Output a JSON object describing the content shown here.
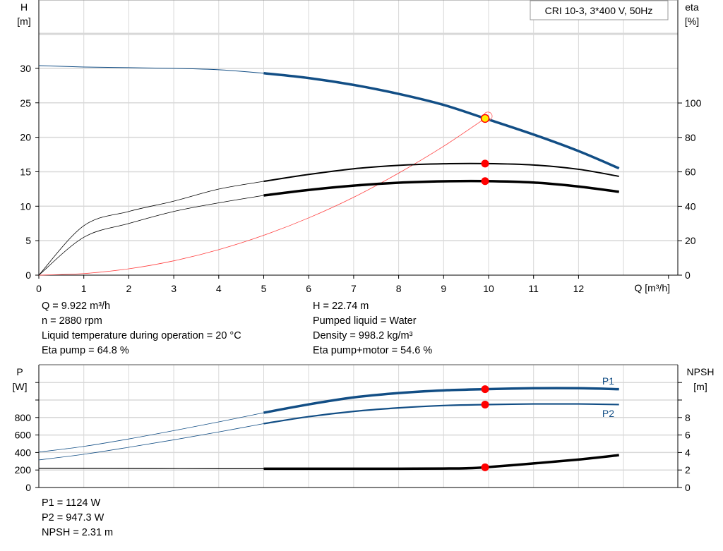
{
  "chart_data": [
    {
      "type": "line",
      "title": "CRI 10-3, 3*400 V, 50Hz",
      "xlabel": "Q [m³/h]",
      "ylabel_left": [
        "H",
        "[m]"
      ],
      "ylabel_right": [
        "eta",
        "[%]"
      ],
      "xlim": [
        0,
        14
      ],
      "xticks": [
        "0",
        "1",
        "2",
        "3",
        "4",
        "5",
        "6",
        "7",
        "8",
        "9",
        "10",
        "11",
        "12"
      ],
      "ylim_left": [
        0,
        35
      ],
      "yticks_left": [
        "0",
        "5",
        "10",
        "15",
        "20",
        "25",
        "30"
      ],
      "ylim_right": [
        0,
        143
      ],
      "yticks_right": [
        "0",
        "20",
        "40",
        "60",
        "80",
        "100"
      ],
      "grid": true,
      "series": [
        {
          "key": "H",
          "axis": "left",
          "color": "#124e85",
          "x": [
            0,
            1,
            2,
            3,
            4,
            5,
            6,
            7,
            8,
            9,
            9.922,
            11,
            12,
            12.9
          ],
          "y": [
            30.4,
            30.2,
            30.1,
            30.0,
            29.8,
            29.3,
            28.6,
            27.6,
            26.3,
            24.7,
            22.74,
            20.4,
            18.0,
            15.5
          ]
        },
        {
          "key": "eta_pump",
          "axis": "right",
          "color": "#000000",
          "x": [
            0,
            1,
            2,
            3,
            4,
            5,
            6,
            7,
            8,
            9,
            9.922,
            11,
            12,
            12.9
          ],
          "y": [
            0,
            28.7,
            37,
            43,
            50,
            54.5,
            58.5,
            61.8,
            63.8,
            64.7,
            64.8,
            64,
            61.5,
            57.4
          ]
        },
        {
          "key": "eta_pump_motor",
          "axis": "right",
          "color": "#000000",
          "x": [
            0,
            1,
            2,
            3,
            4,
            5,
            6,
            7,
            8,
            9,
            9.922,
            11,
            12,
            12.9
          ],
          "y": [
            0,
            22,
            30,
            37,
            42,
            46.3,
            49.5,
            52,
            53.7,
            54.5,
            54.6,
            53.8,
            51.5,
            48.4
          ]
        },
        {
          "key": "system",
          "axis": "left",
          "color": "#ff4040",
          "x": [
            0,
            1,
            2,
            3,
            4,
            5,
            6,
            7,
            8,
            9,
            9.922
          ],
          "y": [
            0,
            0.23,
            0.92,
            2.08,
            3.7,
            5.78,
            8.31,
            11.3,
            14.8,
            18.7,
            22.74
          ]
        }
      ],
      "duty_point": {
        "Q": 9.922,
        "H": 22.74,
        "eta_pump": 64.8,
        "eta_pump_motor": 54.6
      }
    },
    {
      "type": "line",
      "xlim": [
        0,
        14
      ],
      "ylabel_left": [
        "P",
        "[W]"
      ],
      "ylabel_right": [
        "NPSH",
        "[m]"
      ],
      "ylim_left": [
        0,
        1400
      ],
      "yticks_left": [
        "0",
        "200",
        "400",
        "600",
        "800"
      ],
      "ylim_right": [
        0,
        14
      ],
      "yticks_right": [
        "0",
        "2",
        "4",
        "6",
        "8"
      ],
      "grid": true,
      "series": [
        {
          "name": "P1",
          "axis": "left",
          "color": "#124e85",
          "x": [
            0,
            1,
            2,
            3,
            4,
            5,
            6,
            7,
            8,
            9,
            9.922,
            11,
            12,
            12.9
          ],
          "y": [
            405,
            470,
            555,
            650,
            750,
            855,
            950,
            1030,
            1080,
            1110,
            1124,
            1135,
            1135,
            1124
          ]
        },
        {
          "name": "P2",
          "axis": "left",
          "color": "#124e85",
          "x": [
            0,
            1,
            2,
            3,
            4,
            5,
            6,
            7,
            8,
            9,
            9.922,
            11,
            12,
            12.9
          ],
          "y": [
            315,
            380,
            460,
            545,
            635,
            730,
            810,
            870,
            910,
            937,
            947.3,
            955,
            955,
            948
          ]
        },
        {
          "key": "NPSH",
          "axis": "right",
          "color": "#000000",
          "x": [
            0,
            2,
            4,
            5,
            6,
            7,
            8,
            9,
            9.5,
            9.922,
            11,
            12,
            12.9
          ],
          "y": [
            2.2,
            2.18,
            2.15,
            2.15,
            2.15,
            2.15,
            2.15,
            2.17,
            2.2,
            2.31,
            2.75,
            3.2,
            3.7
          ]
        }
      ],
      "duty_point": {
        "Q": 9.922,
        "P1": 1124,
        "P2": 947.3,
        "NPSH": 2.31
      }
    }
  ],
  "info_top_left": [
    "Q = 9.922 m³/h",
    "n = 2880 rpm",
    "Liquid temperature during operation = 20 °C",
    "Eta pump = 64.8 %"
  ],
  "info_top_right": [
    "H = 22.74 m",
    "Pumped liquid = Water",
    "Density = 998.2 kg/m³",
    "Eta pump+motor = 54.6 %"
  ],
  "info_bottom": [
    "P1 = 1124 W",
    "P2 = 947.3 W",
    "NPSH = 2.31 m"
  ]
}
